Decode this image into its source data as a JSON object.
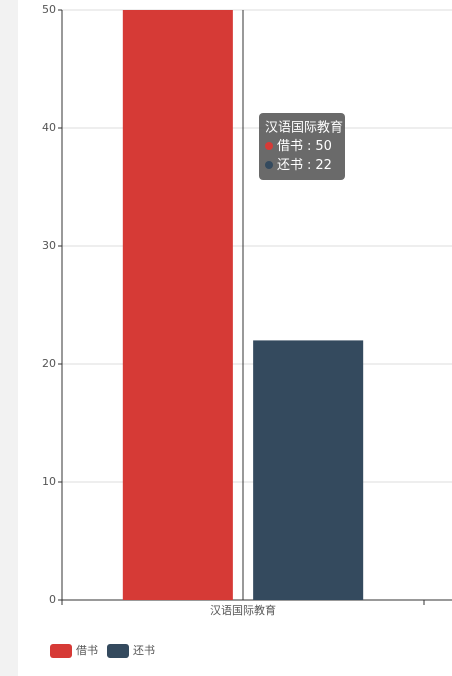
{
  "chart_data": {
    "type": "bar",
    "categories": [
      "汉语国际教育"
    ],
    "series": [
      {
        "name": "借书",
        "color": "#d63a36",
        "values": [
          50
        ]
      },
      {
        "name": "还书",
        "color": "#344a5e",
        "values": [
          22
        ]
      }
    ],
    "ylim": [
      0,
      50
    ],
    "yticks": [
      0,
      10,
      20,
      30,
      40,
      50
    ],
    "grid": true,
    "legend": "bottom-left",
    "tooltip_separator": ":"
  }
}
